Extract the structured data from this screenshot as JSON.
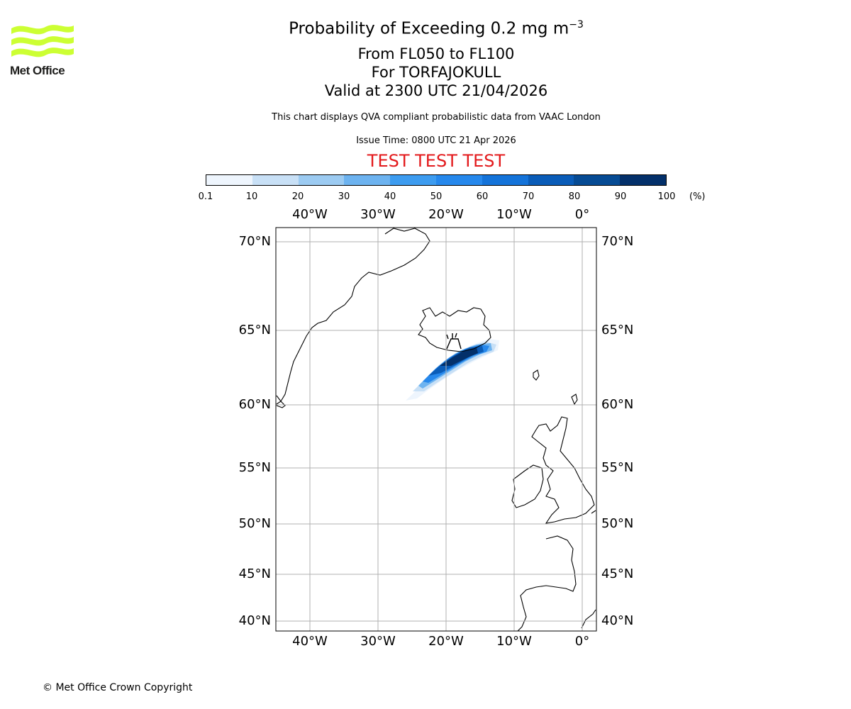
{
  "logo": {
    "text": "Met Office",
    "color": "#ccff33"
  },
  "header": {
    "title_main": "Probability of Exceeding 0.2 mg m",
    "title_sup": "−3",
    "range": "From FL050 to FL100",
    "volcano": "For TORFAJOKULL",
    "valid": "Valid at 2300 UTC 21/04/2026",
    "note": "This chart displays QVA compliant probabilistic data from VAAC London",
    "issue": "Issue Time: 0800 UTC 21 Apr 2026",
    "test_banner": "TEST TEST TEST"
  },
  "colorbar": {
    "unit": "(%)",
    "ticks": [
      "0.1",
      "10",
      "20",
      "30",
      "40",
      "50",
      "60",
      "70",
      "80",
      "90",
      "100"
    ],
    "colors": [
      "#eef5fd",
      "#c8e0f6",
      "#9ccbf2",
      "#6db3f0",
      "#3d9cf0",
      "#2688ec",
      "#1473d9",
      "#0a5cb8",
      "#064b94",
      "#03306a"
    ]
  },
  "map": {
    "lon_labels": [
      "40°W",
      "30°W",
      "20°W",
      "10°W",
      "0°"
    ],
    "lat_labels": [
      "70°N",
      "65°N",
      "60°N",
      "55°N",
      "50°N",
      "45°N",
      "40°N"
    ],
    "volcano_symbol": "volcano-marker"
  },
  "footer": {
    "copyright": "© Met Office Crown Copyright"
  }
}
